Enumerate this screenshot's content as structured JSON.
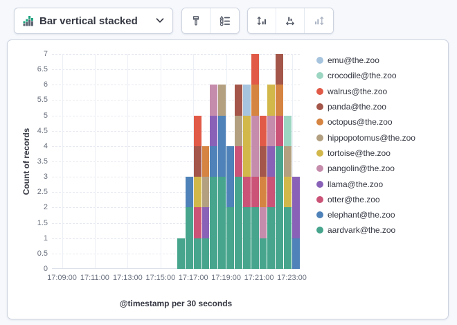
{
  "toolbar": {
    "chart_type_selector": {
      "label": "Bar vertical stacked",
      "icon": "bar-vertical-stacked-icon",
      "chevron_icon": "chevron-down-icon"
    },
    "groups": [
      {
        "name": "style-controls",
        "buttons": [
          {
            "name": "visual-options-button",
            "icon": "brush-icon",
            "disabled": false
          },
          {
            "name": "legend-options-button",
            "icon": "legend-list-icon",
            "disabled": false
          }
        ]
      },
      {
        "name": "axis-controls",
        "buttons": [
          {
            "name": "left-axis-button",
            "icon": "axis-left-icon",
            "disabled": false
          },
          {
            "name": "bottom-axis-button",
            "icon": "axis-bottom-icon",
            "disabled": false
          },
          {
            "name": "right-axis-button",
            "icon": "axis-right-icon",
            "disabled": true
          }
        ]
      }
    ]
  },
  "chart_data": {
    "type": "bar",
    "stacked": true,
    "title": "",
    "xlabel": "@timestamp per 30 seconds",
    "ylabel": "Count of records",
    "ylim": [
      0,
      7
    ],
    "grid": true,
    "legend_position": "right",
    "y_tick_labels": [
      "0",
      "0.5",
      "1",
      "1.5",
      "2",
      "2.5",
      "3",
      "3.5",
      "4",
      "4.5",
      "5",
      "5.5",
      "6",
      "6.5",
      "7"
    ],
    "x_tick_labels": [
      "17:09:00",
      "17:11:00",
      "17:13:00",
      "17:15:00",
      "17:17:00",
      "17:19:00",
      "17:21:00",
      "17:23:00"
    ],
    "bar_times": [
      "17:16:00",
      "17:16:30",
      "17:17:00",
      "17:17:30",
      "17:18:00",
      "17:18:30",
      "17:19:00",
      "17:19:30",
      "17:20:00",
      "17:20:30",
      "17:21:00",
      "17:21:30",
      "17:22:00",
      "17:22:30",
      "17:23:00"
    ],
    "series": [
      {
        "name": "aardvark@the.zoo",
        "color": "#46A58C",
        "values": [
          1,
          2,
          1,
          1,
          3,
          3,
          2,
          3,
          2,
          2,
          1,
          2,
          4,
          2,
          0
        ]
      },
      {
        "name": "elephant@the.zoo",
        "color": "#4E82B8",
        "values": [
          0,
          1,
          0,
          0,
          1,
          2,
          2,
          0,
          0,
          0,
          0,
          0,
          0,
          0,
          1
        ]
      },
      {
        "name": "otter@the.zoo",
        "color": "#CB5377",
        "values": [
          0,
          0,
          1,
          0,
          0,
          0,
          0,
          1,
          1,
          1,
          0,
          1,
          1,
          0,
          0
        ]
      },
      {
        "name": "llama@the.zoo",
        "color": "#8962B8",
        "values": [
          0,
          0,
          0,
          1,
          1,
          0,
          0,
          0,
          0,
          0,
          0,
          1,
          0,
          0,
          2
        ]
      },
      {
        "name": "pangolin@the.zoo",
        "color": "#C58CAC",
        "values": [
          0,
          0,
          0,
          0,
          1,
          0,
          0,
          0,
          0,
          2,
          1,
          1,
          0,
          0,
          0
        ]
      },
      {
        "name": "tortoise@the.zoo",
        "color": "#D2B84B",
        "values": [
          0,
          0,
          1,
          0,
          0,
          0,
          0,
          0,
          2,
          0,
          0,
          1,
          0,
          1,
          0
        ]
      },
      {
        "name": "hippopotomus@the.zoo",
        "color": "#B3A081",
        "values": [
          0,
          0,
          0,
          1,
          0,
          1,
          0,
          1,
          0,
          0,
          0,
          0,
          0,
          1,
          0
        ]
      },
      {
        "name": "octopus@the.zoo",
        "color": "#D68441",
        "values": [
          0,
          0,
          0,
          1,
          0,
          0,
          0,
          0,
          0,
          1,
          1,
          0,
          1,
          0,
          0
        ]
      },
      {
        "name": "panda@the.zoo",
        "color": "#A35649",
        "values": [
          0,
          0,
          1,
          0,
          0,
          0,
          0,
          1,
          0,
          0,
          1,
          0,
          1,
          0,
          0
        ]
      },
      {
        "name": "walrus@the.zoo",
        "color": "#E05A47",
        "values": [
          0,
          0,
          1,
          0,
          0,
          0,
          0,
          0,
          0,
          1,
          1,
          0,
          0,
          0,
          0
        ]
      },
      {
        "name": "crocodile@the.zoo",
        "color": "#9CD6C2",
        "values": [
          0,
          0,
          0,
          0,
          0,
          0,
          0,
          0,
          0,
          0,
          0,
          0,
          0,
          1,
          0
        ]
      },
      {
        "name": "emu@the.zoo",
        "color": "#A7C4DE",
        "values": [
          0,
          0,
          0,
          0,
          0,
          0,
          0,
          0,
          1,
          0,
          0,
          0,
          0,
          0,
          0
        ]
      }
    ]
  },
  "ui_colors": {
    "page_bg": "#F6F8FC",
    "panel_border": "#CDD3DF",
    "text": "#343741",
    "tick_text": "#69707D",
    "gridline": "#ECEFF5",
    "icon_gray": "#535966",
    "icon_disabled": "#ABB4C4",
    "icon_green": "#1BA37E"
  }
}
